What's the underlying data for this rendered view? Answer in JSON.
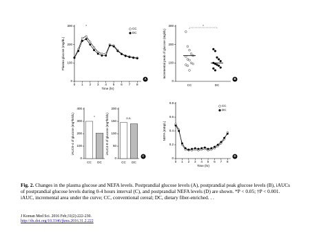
{
  "chart_data": [
    {
      "type": "line",
      "panel": "A",
      "ylabel": "Plasma glucose (mg/dL)",
      "xlabel": "Time (hr)",
      "annotation": "*",
      "x": [
        0,
        0.5,
        1,
        1.5,
        2,
        2.5,
        3,
        3.5,
        4,
        4.5,
        5,
        5.5,
        6,
        6.5,
        7,
        7.5,
        8
      ],
      "series": [
        {
          "name": "CC",
          "color": "#ffffff",
          "values": [
            130,
            175,
            235,
            245,
            215,
            185,
            160,
            150,
            150,
            200,
            195,
            170,
            150,
            140,
            135,
            130,
            128
          ]
        },
        {
          "name": "DC",
          "color": "#000000",
          "values": [
            128,
            165,
            220,
            230,
            200,
            170,
            150,
            140,
            140,
            195,
            190,
            165,
            148,
            138,
            132,
            128,
            125
          ]
        }
      ],
      "xlim": [
        0,
        8.5
      ],
      "xticks": [
        0,
        1,
        2,
        3,
        4,
        5,
        6,
        7,
        8
      ],
      "ylim": [
        0,
        300
      ],
      "yticks": [
        0,
        100,
        200,
        300
      ]
    },
    {
      "type": "strip",
      "panel": "B",
      "ylabel": "Incremental peak of glucose (mg/dL)",
      "annotation": "*",
      "categories": [
        "CC",
        "DC"
      ],
      "series": [
        {
          "name": "CC",
          "color": "#ffffff",
          "values": [
            270,
            190,
            170,
            150,
            140,
            135,
            120,
            115,
            100,
            95,
            90,
            85,
            60
          ],
          "mean": 140
        },
        {
          "name": "DC",
          "color": "#000000",
          "values": [
            175,
            165,
            130,
            120,
            110,
            100,
            95,
            90,
            85,
            75,
            70,
            60
          ],
          "mean": 100
        }
      ],
      "ylim": [
        0,
        300
      ],
      "yticks": [
        0,
        100,
        200,
        300
      ]
    },
    {
      "type": "bar",
      "ylabel": "iAUC0-4 of glucose (mg*hr/dL)",
      "annotation": "*",
      "categories": [
        "CC",
        "DC"
      ],
      "values": [
        300,
        205
      ],
      "colors": [
        "#ffffff",
        "#bbbbbb"
      ],
      "ylim": [
        0,
        400
      ],
      "yticks": [
        0,
        100,
        200,
        300,
        400
      ]
    },
    {
      "type": "bar",
      "panel": "C",
      "ylabel": "iAUC4-8 of glucose (mg*hr/dL)",
      "annotation": "n.s.",
      "categories": [
        "CC",
        "DC"
      ],
      "values": [
        145,
        140
      ],
      "colors": [
        "#ffffff",
        "#bbbbbb"
      ],
      "ylim": [
        0,
        200
      ],
      "yticks": [
        0,
        50,
        100,
        150,
        200
      ]
    },
    {
      "type": "line",
      "panel": "D",
      "ylabel": "NEFA (mEq/L)",
      "xlabel": "Time (hr)",
      "x": [
        0,
        0.5,
        1,
        1.5,
        2,
        2.5,
        3,
        3.5,
        4,
        4.5,
        5,
        5.5,
        6,
        6.5,
        7,
        7.5,
        8
      ],
      "series": [
        {
          "name": "CC",
          "color": "#ffffff",
          "values": [
            0.5,
            0.42,
            0.2,
            0.13,
            0.12,
            0.12,
            0.13,
            0.12,
            0.13,
            0.14,
            0.12,
            0.13,
            0.15,
            0.18,
            0.22,
            0.28,
            0.38
          ]
        },
        {
          "name": "DC",
          "color": "#000000",
          "values": [
            0.48,
            0.4,
            0.22,
            0.15,
            0.13,
            0.14,
            0.15,
            0.14,
            0.15,
            0.16,
            0.14,
            0.15,
            0.17,
            0.2,
            0.24,
            0.3,
            0.36
          ]
        }
      ],
      "xlim": [
        0,
        8.5
      ],
      "xticks": [
        0,
        1,
        2,
        3,
        4,
        5,
        6,
        7,
        8
      ],
      "ylim": [
        0,
        0.8
      ],
      "yticks": [
        0,
        0.2,
        0.4,
        0.6,
        0.8
      ]
    }
  ],
  "caption": {
    "label": "Fig. 2.",
    "text": "Changes in the plasma glucose and NEFA levels. Postprandial glucose levels (A), postprandial peak glucose levels (B), iAUCs of postprandial glucose levels during 0-4 hours interval (C), and postprandial NEFA levels (D) are shown. *P < 0.05; †P < 0.001. iAUC, incremental area under the curve; CC, conventional cereal; DC, dietary fiber-enriched. . ."
  },
  "citation": {
    "journal": "J Korean Med Sci. 2016 Feb;31(2):222-230.",
    "doi": "http://dx.doi.org/10.3346/jkms.2016.31.2.222"
  }
}
